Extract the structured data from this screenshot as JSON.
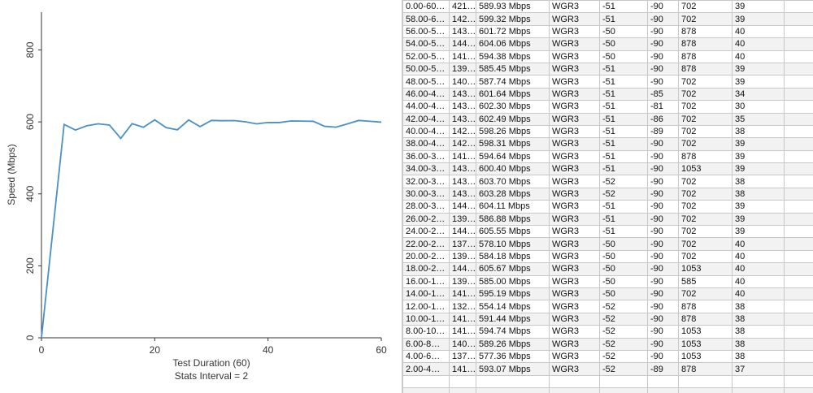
{
  "chart_data": {
    "type": "line",
    "x_label": "Test Duration (60)",
    "x_label_2": "Stats Interval = 2",
    "y_label": "Speed (Mbps)",
    "x": [
      0,
      4,
      6,
      8,
      10,
      12,
      14,
      16,
      18,
      20,
      22,
      24,
      26,
      28,
      30,
      32,
      34,
      36,
      38,
      40,
      42,
      44,
      46,
      48,
      50,
      52,
      54,
      56,
      58,
      60
    ],
    "values": [
      0,
      593.07,
      577.36,
      589.26,
      594.74,
      591.44,
      554.14,
      595.19,
      585.0,
      605.67,
      584.18,
      578.1,
      605.55,
      586.88,
      604.11,
      603.28,
      603.7,
      600.4,
      594.64,
      598.31,
      598.26,
      602.49,
      602.3,
      601.64,
      587.74,
      585.45,
      594.38,
      604.06,
      601.72,
      599.32
    ],
    "color": "#4a90c8",
    "xlim": [
      0,
      60
    ],
    "xticks": [
      0,
      20,
      40,
      60
    ],
    "ylim": [
      0,
      905
    ],
    "yticks": [
      0,
      200,
      400,
      600,
      800
    ]
  },
  "table": {
    "rows": [
      [
        "0.00-60…",
        "421…",
        "589.93 Mbps",
        "WGR3",
        "-51",
        "-90",
        "702",
        "39"
      ],
      [
        "58.00-6…",
        "142…",
        "599.32 Mbps",
        "WGR3",
        "-51",
        "-90",
        "702",
        "39"
      ],
      [
        "56.00-5…",
        "143…",
        "601.72 Mbps",
        "WGR3",
        "-50",
        "-90",
        "878",
        "40"
      ],
      [
        "54.00-5…",
        "144…",
        "604.06 Mbps",
        "WGR3",
        "-50",
        "-90",
        "878",
        "40"
      ],
      [
        "52.00-5…",
        "141…",
        "594.38 Mbps",
        "WGR3",
        "-50",
        "-90",
        "878",
        "40"
      ],
      [
        "50.00-5…",
        "139…",
        "585.45 Mbps",
        "WGR3",
        "-51",
        "-90",
        "878",
        "39"
      ],
      [
        "48.00-5…",
        "140…",
        "587.74 Mbps",
        "WGR3",
        "-51",
        "-90",
        "702",
        "39"
      ],
      [
        "46.00-4…",
        "143…",
        "601.64 Mbps",
        "WGR3",
        "-51",
        "-85",
        "702",
        "34"
      ],
      [
        "44.00-4…",
        "143…",
        "602.30 Mbps",
        "WGR3",
        "-51",
        "-81",
        "702",
        "30"
      ],
      [
        "42.00-4…",
        "143…",
        "602.49 Mbps",
        "WGR3",
        "-51",
        "-86",
        "702",
        "35"
      ],
      [
        "40.00-4…",
        "142…",
        "598.26 Mbps",
        "WGR3",
        "-51",
        "-89",
        "702",
        "38"
      ],
      [
        "38.00-4…",
        "142…",
        "598.31 Mbps",
        "WGR3",
        "-51",
        "-90",
        "702",
        "39"
      ],
      [
        "36.00-3…",
        "141…",
        "594.64 Mbps",
        "WGR3",
        "-51",
        "-90",
        "878",
        "39"
      ],
      [
        "34.00-3…",
        "143…",
        "600.40 Mbps",
        "WGR3",
        "-51",
        "-90",
        "1053",
        "39"
      ],
      [
        "32.00-3…",
        "143…",
        "603.70 Mbps",
        "WGR3",
        "-52",
        "-90",
        "702",
        "38"
      ],
      [
        "30.00-3…",
        "143…",
        "603.28 Mbps",
        "WGR3",
        "-52",
        "-90",
        "702",
        "38"
      ],
      [
        "28.00-3…",
        "144…",
        "604.11 Mbps",
        "WGR3",
        "-51",
        "-90",
        "702",
        "39"
      ],
      [
        "26.00-2…",
        "139…",
        "586.88 Mbps",
        "WGR3",
        "-51",
        "-90",
        "702",
        "39"
      ],
      [
        "24.00-2…",
        "144…",
        "605.55 Mbps",
        "WGR3",
        "-51",
        "-90",
        "702",
        "39"
      ],
      [
        "22.00-2…",
        "137…",
        "578.10 Mbps",
        "WGR3",
        "-50",
        "-90",
        "702",
        "40"
      ],
      [
        "20.00-2…",
        "139…",
        "584.18 Mbps",
        "WGR3",
        "-50",
        "-90",
        "702",
        "40"
      ],
      [
        "18.00-2…",
        "144…",
        "605.67 Mbps",
        "WGR3",
        "-50",
        "-90",
        "1053",
        "40"
      ],
      [
        "16.00-1…",
        "139…",
        "585.00 Mbps",
        "WGR3",
        "-50",
        "-90",
        "585",
        "40"
      ],
      [
        "14.00-1…",
        "141…",
        "595.19 Mbps",
        "WGR3",
        "-50",
        "-90",
        "702",
        "40"
      ],
      [
        "12.00-1…",
        "132…",
        "554.14 Mbps",
        "WGR3",
        "-52",
        "-90",
        "878",
        "38"
      ],
      [
        "10.00-1…",
        "141…",
        "591.44 Mbps",
        "WGR3",
        "-52",
        "-90",
        "878",
        "38"
      ],
      [
        "8.00-10…",
        "141…",
        "594.74 Mbps",
        "WGR3",
        "-52",
        "-90",
        "1053",
        "38"
      ],
      [
        "6.00-8…",
        "140…",
        "589.26 Mbps",
        "WGR3",
        "-52",
        "-90",
        "1053",
        "38"
      ],
      [
        "4.00-6…",
        "137…",
        "577.36 Mbps",
        "WGR3",
        "-52",
        "-90",
        "1053",
        "38"
      ],
      [
        "2.00-4…",
        "141…",
        "593.07 Mbps",
        "WGR3",
        "-52",
        "-89",
        "878",
        "37"
      ]
    ]
  }
}
